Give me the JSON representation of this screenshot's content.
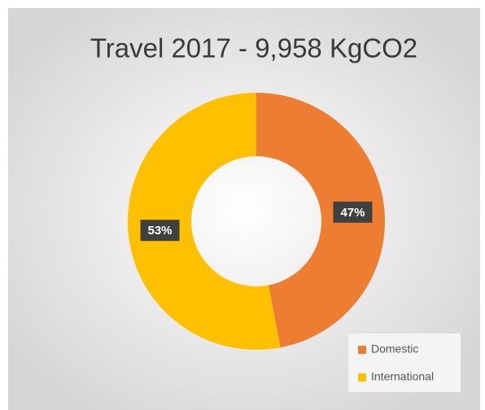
{
  "chart_data": {
    "type": "donut",
    "title": "Travel 2017 - 9,958 KgCO2",
    "categories": [
      "Domestic",
      "International"
    ],
    "values": [
      47,
      53
    ],
    "value_labels": [
      "47%",
      "53%"
    ],
    "colors": [
      "#ed7d31",
      "#ffc000"
    ],
    "legend": "bottom-right"
  }
}
